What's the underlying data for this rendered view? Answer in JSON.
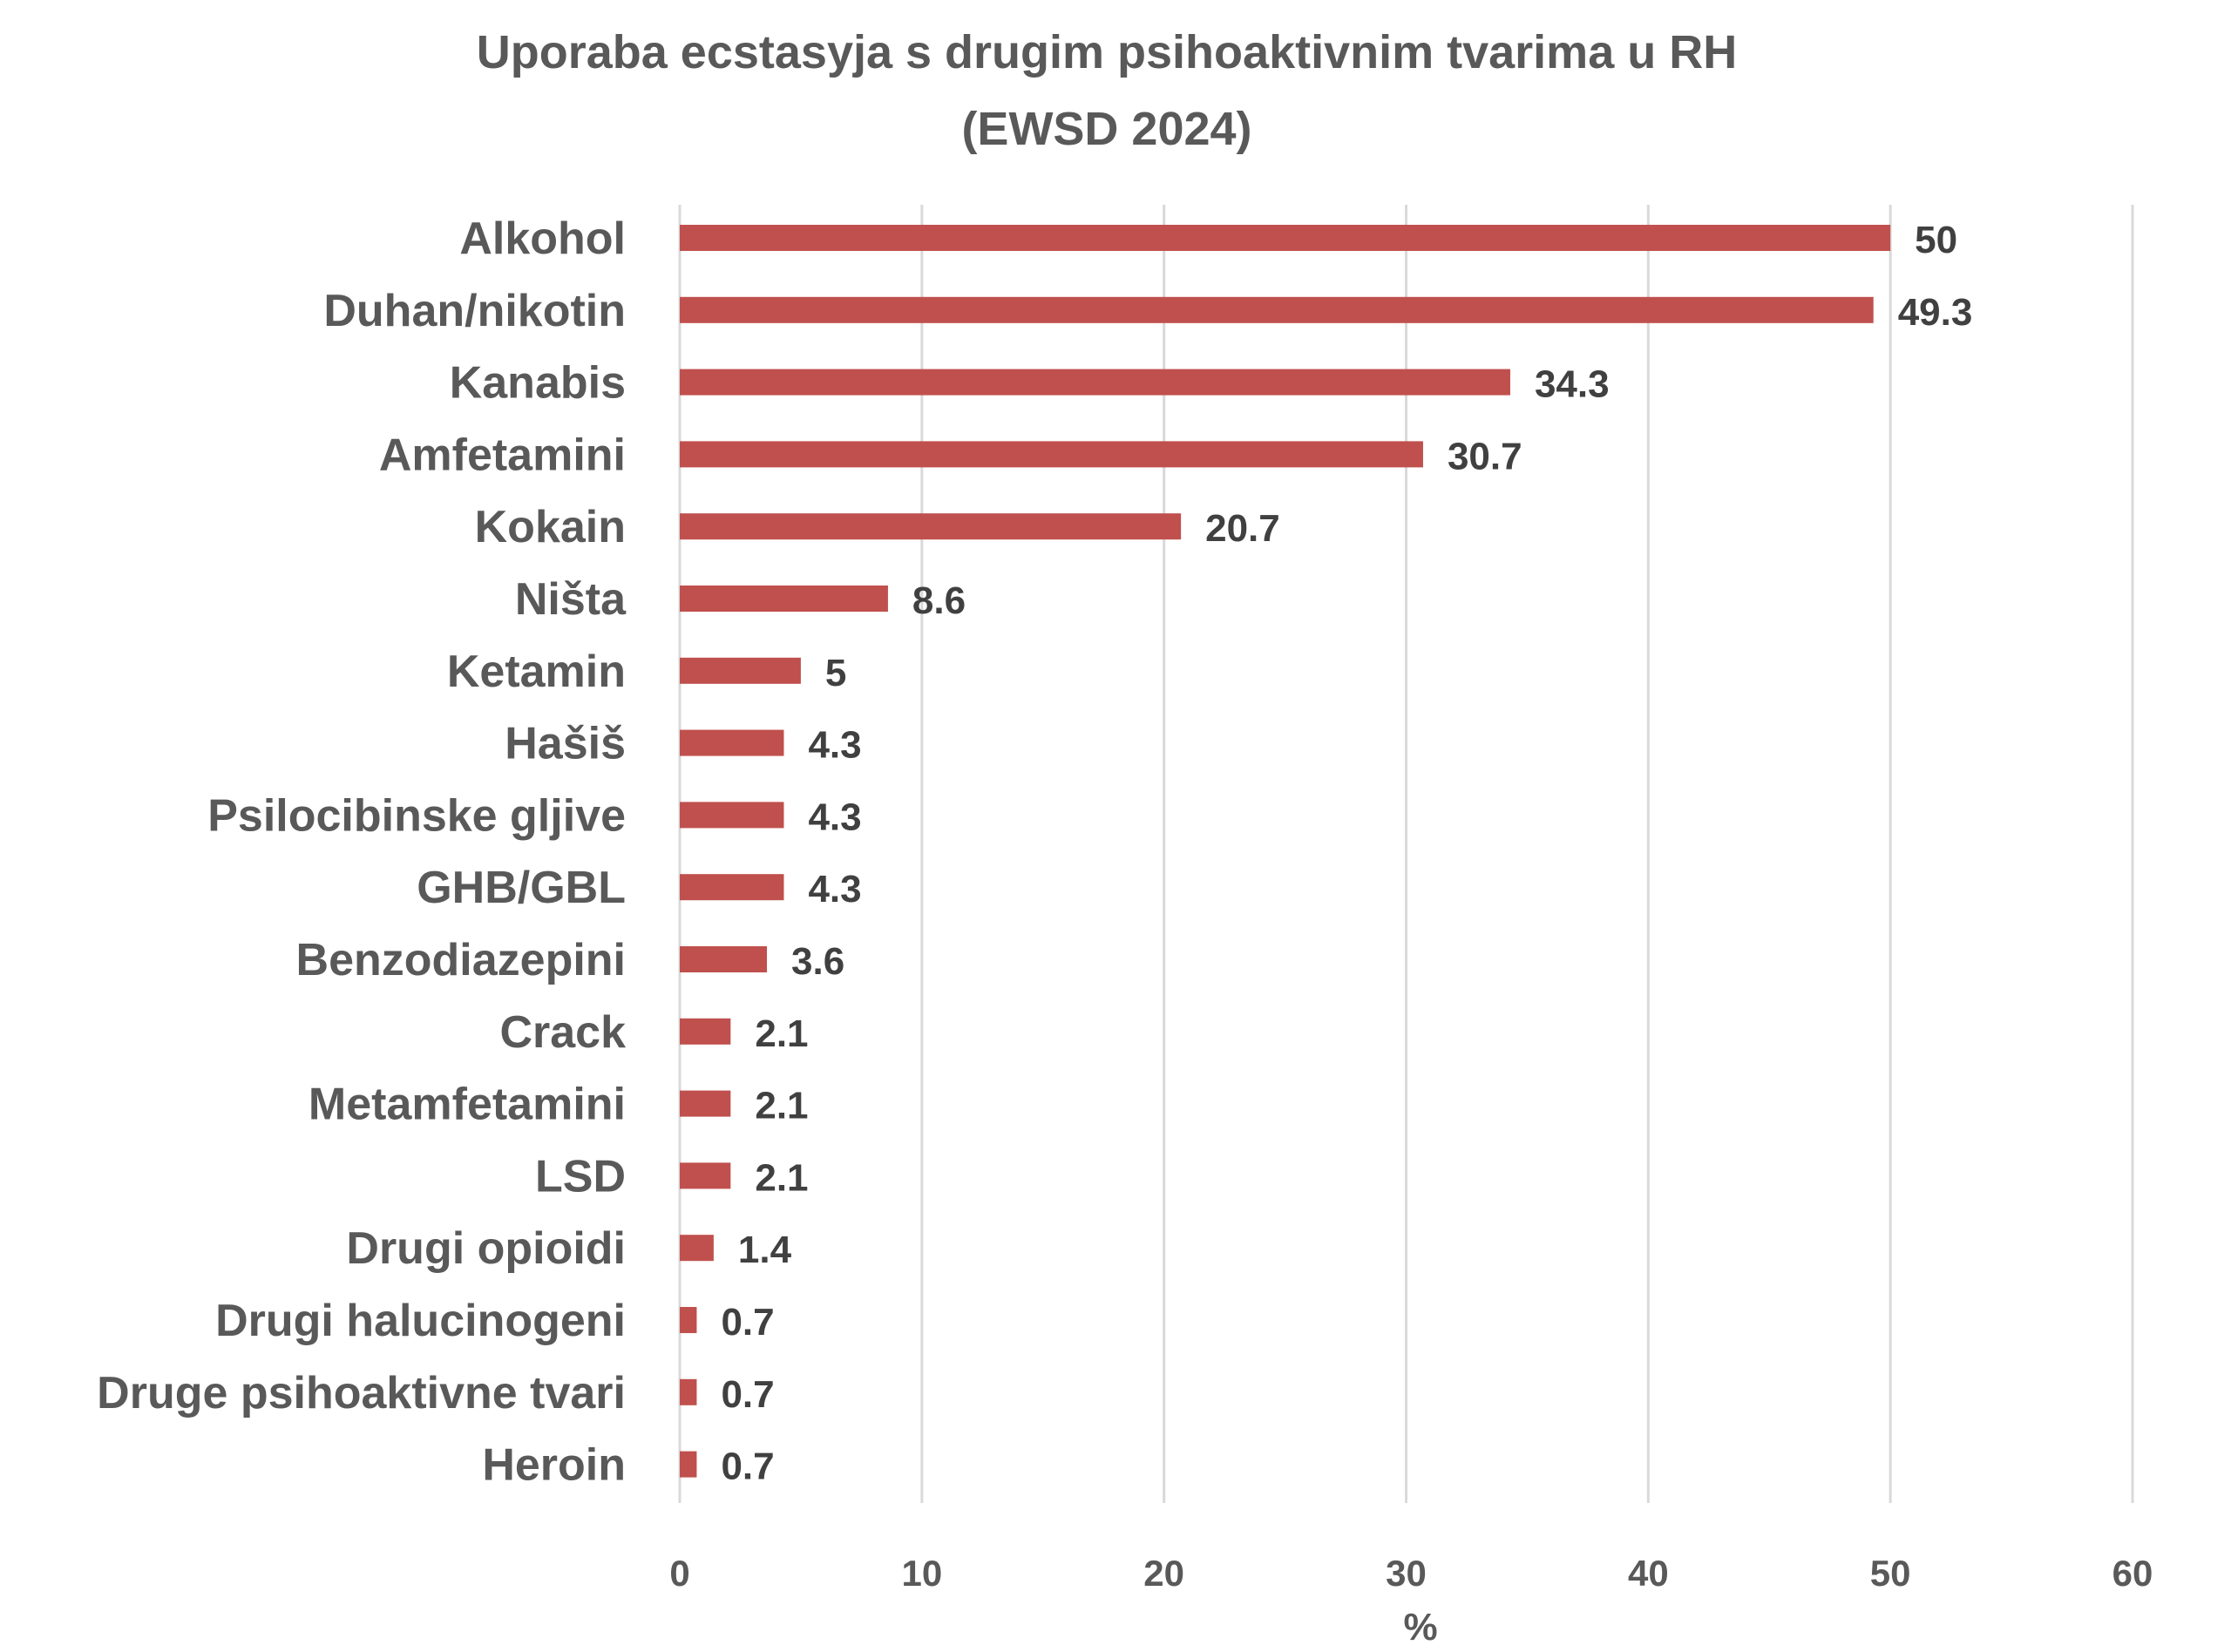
{
  "chart_data": {
    "type": "bar",
    "orientation": "horizontal",
    "title_lines": [
      "Uporaba ecstasyja s drugim psihoaktivnim tvarima u RH",
      "(EWSD 2024)"
    ],
    "xlabel": "%",
    "ylabel": "",
    "xlim": [
      0,
      60
    ],
    "xticks": [
      0,
      10,
      20,
      30,
      40,
      50,
      60
    ],
    "grid": "vertical",
    "legend": "none",
    "bar_color": "#c0504d",
    "categories": [
      "Alkohol",
      "Duhan/nikotin",
      "Kanabis",
      "Amfetamini",
      "Kokain",
      "Ništa",
      "Ketamin",
      "Hašiš",
      "Psilocibinske gljive",
      "GHB/GBL",
      "Benzodiazepini",
      "Crack",
      "Metamfetamini",
      "LSD",
      "Drugi opioidi",
      "Drugi halucinogeni",
      "Druge psihoaktivne tvari",
      "Heroin"
    ],
    "values": [
      50,
      49.3,
      34.3,
      30.7,
      20.7,
      8.6,
      5,
      4.3,
      4.3,
      4.3,
      3.6,
      2.1,
      2.1,
      2.1,
      1.4,
      0.7,
      0.7,
      0.7
    ],
    "value_labels": [
      "50",
      "49.3",
      "34.3",
      "30.7",
      "20.7",
      "8.6",
      "5",
      "4.3",
      "4.3",
      "4.3",
      "3.6",
      "2.1",
      "2.1",
      "2.1",
      "1.4",
      "0.7",
      "0.7",
      "0.7"
    ]
  }
}
